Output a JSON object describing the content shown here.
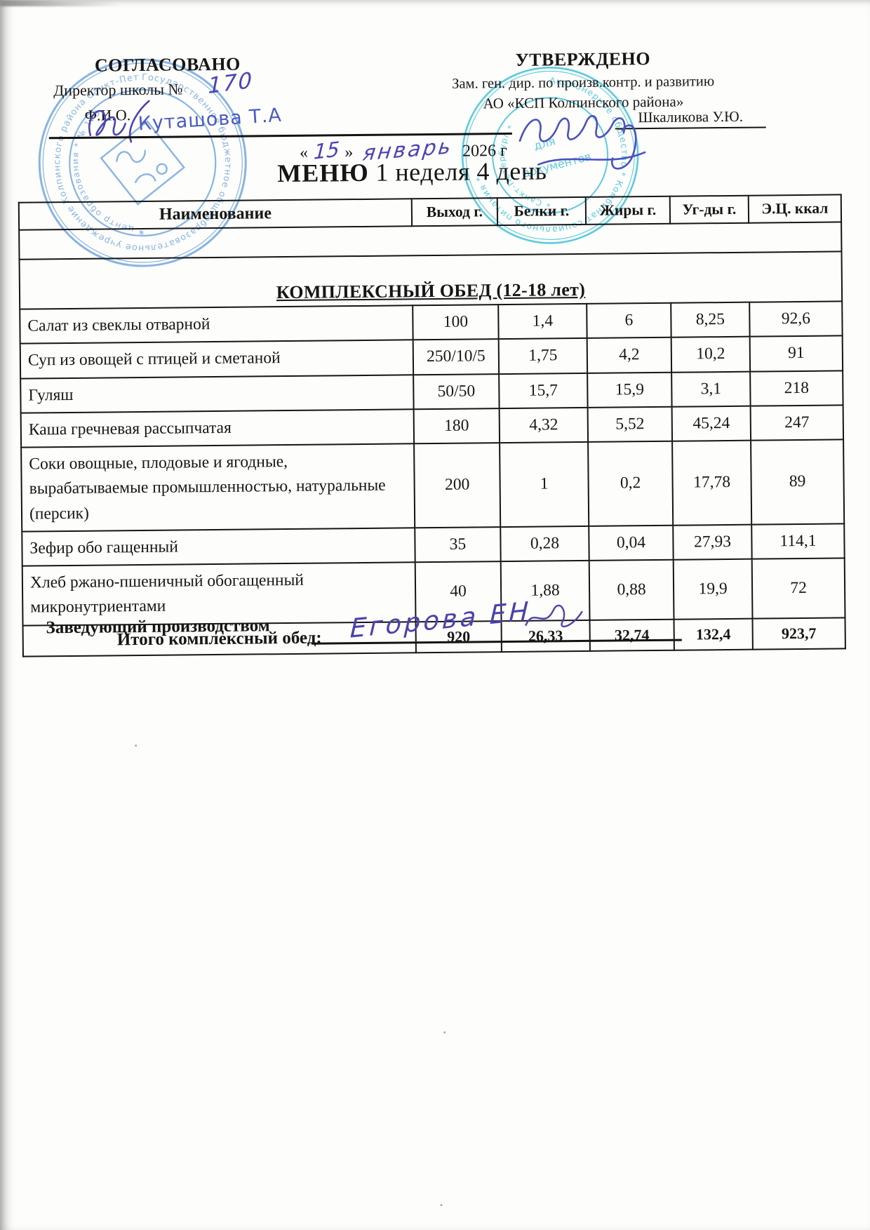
{
  "document": {
    "left_approval": {
      "title": "СОГЛАСОВАНО",
      "role_line": "Директор школы №",
      "school_number_handwritten": "170",
      "fio_label": "Ф.И.О.",
      "signature_handwritten": "Куташова Т.А"
    },
    "right_approval": {
      "title": "УТВЕРЖДЕНО",
      "role_line1": "Зам. ген. дир. по произв.контр. и развитию",
      "role_line2": "АО «КСП Колпинского района»",
      "signer_name": "Шкаликова У.Ю."
    },
    "date_line": {
      "quote_open": "«",
      "day_handwritten": "15",
      "quote_close": "»",
      "month_handwritten": "январь",
      "year_printed": "2026 г"
    },
    "title": {
      "menu_word": "МЕНЮ",
      "subtitle": " 1 неделя 4 день"
    },
    "footer": {
      "label": "Заведующий производством",
      "signature_handwritten": "Егорова ЕН"
    }
  },
  "table": {
    "headers": [
      "Наименование",
      "Выход г.",
      "Белки г.",
      "Жиры г.",
      "Уг-ды г.",
      "Э.Ц. ккал"
    ],
    "section_title": "КОМПЛЕКСНЫЙ ОБЕД (12-18 лет)",
    "rows": [
      [
        "Салат из свеклы отварной",
        "100",
        "1,4",
        "6",
        "8,25",
        "92,6"
      ],
      [
        "Суп из овощей с птицей и сметаной",
        "250/10/5",
        "1,75",
        "4,2",
        "10,2",
        "91"
      ],
      [
        "Гуляш",
        "50/50",
        "15,7",
        "15,9",
        "3,1",
        "218"
      ],
      [
        "Каша гречневая рассыпчатая",
        "180",
        "4,32",
        "5,52",
        "45,24",
        "247"
      ],
      [
        "Соки овощные, плодовые и ягодные, вырабатываемые промышленностью, натуральные (персик)",
        "200",
        "1",
        "0,2",
        "17,78",
        "89"
      ],
      [
        "Зефир обо гащенный",
        "35",
        "0,28",
        "0,04",
        "27,93",
        "114,1"
      ],
      [
        "Хлеб ржано-пшеничный обогащенный микронутриентами",
        "40",
        "1,88",
        "0,88",
        "19,9",
        "72"
      ]
    ],
    "total": {
      "label": "Итого комплексный обед:",
      "values": [
        "920",
        "26,33",
        "32,74",
        "132,4",
        "923,7"
      ]
    }
  },
  "stamps": {
    "left": {
      "color": "#6ea4de",
      "ring_text": "Государственное бюджетное общеобразовательное учреждение Колпинского района Санкт-Петербурга *",
      "inner_text": "* центр образования * № 170"
    },
    "right": {
      "color": "#3fc2da",
      "ring_text": "Акционерное общество * Комбинат социального питания *",
      "bottom_text": "* Санкт-Петербург *",
      "center_text_line1": "для",
      "center_text_line2": "документов"
    }
  },
  "ink_color": "#4a44b4"
}
